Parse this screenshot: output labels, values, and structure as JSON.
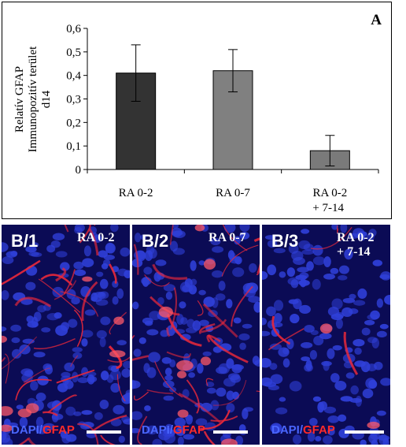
{
  "panel_a": {
    "letter": "A",
    "chart_data": {
      "type": "bar",
      "categories": [
        [
          "RA 0-2"
        ],
        [
          "RA 0-7"
        ],
        [
          "RA 0-2",
          "+ 7-14"
        ]
      ],
      "values": [
        0.41,
        0.42,
        0.08
      ],
      "errors": [
        0.12,
        0.09,
        0.065
      ],
      "bar_colors": [
        "#333333",
        "#808080",
        "#7a7a7a"
      ],
      "ylabel": [
        "Relatív GFAP",
        "Immunopozitív terület",
        "d14"
      ],
      "xlabel": "",
      "ylim": [
        0,
        0.6
      ],
      "yticks": [
        "0",
        "0,1",
        "0,2",
        "0,3",
        "0,4",
        "0,5",
        "0,6"
      ],
      "grid": false
    }
  },
  "micrographs": [
    {
      "label": "B/1",
      "condition": "RA 0-2",
      "stain_dapi": "DAPI",
      "stain_sep": "/",
      "stain_gfap": "GFAP",
      "gfap_intensity": "high"
    },
    {
      "label": "B/2",
      "condition": "RA 0-7",
      "stain_dapi": "DAPI",
      "stain_sep": "/",
      "stain_gfap": "GFAP",
      "gfap_intensity": "high"
    },
    {
      "label": "B/3",
      "condition": "RA 0-2\n+ 7-14",
      "stain_dapi": "DAPI",
      "stain_sep": "/",
      "stain_gfap": "GFAP",
      "gfap_intensity": "low"
    }
  ],
  "colors": {
    "dapi": "#2f3fd8",
    "gfap": "#e8283a",
    "background": "#0b0b55"
  }
}
